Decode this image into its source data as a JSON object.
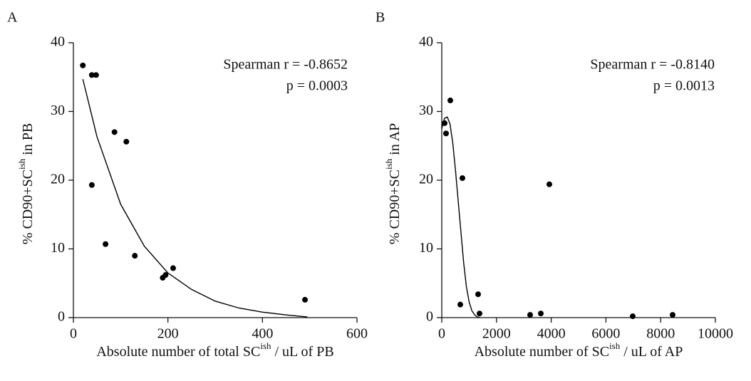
{
  "chart_data": [
    {
      "type": "scatter",
      "panel": "A",
      "annotations": [
        "Spearman r = -0.8652",
        "p = 0.0003"
      ],
      "x_label": [
        "Absolute number of total SC",
        "ish",
        " / uL of PB"
      ],
      "y_label": [
        "% CD90+SC",
        "ish",
        " in PB"
      ],
      "xlim": [
        0,
        600
      ],
      "xticks": [
        0,
        200,
        400,
        600
      ],
      "ylim": [
        0,
        40
      ],
      "yticks": [
        0,
        10,
        20,
        30,
        40
      ],
      "series": [
        {
          "type": "scatter",
          "color": "#000000",
          "x": [
            20,
            39,
            48,
            87,
            112,
            39,
            68,
            130,
            189,
            195,
            211,
            490
          ],
          "values": [
            36.7,
            35.3,
            35.3,
            27.0,
            25.6,
            19.3,
            10.7,
            9.0,
            5.8,
            6.2,
            7.2,
            2.6
          ]
        },
        {
          "type": "line",
          "color": "#000000",
          "x": [
            20,
            50,
            100,
            150,
            200,
            250,
            300,
            350,
            400,
            450,
            495
          ],
          "values": [
            34.7,
            26.3,
            16.5,
            10.4,
            6.5,
            4.1,
            2.4,
            1.4,
            0.8,
            0.4,
            0.1
          ]
        }
      ]
    },
    {
      "type": "scatter",
      "panel": "B",
      "annotations": [
        "Spearman r = -0.8140",
        "p = 0.0013"
      ],
      "x_label": [
        "Absolute number of SC",
        "ish",
        " / uL of AP"
      ],
      "y_label": [
        "% CD90+SC",
        "ish",
        " in AP"
      ],
      "xlim": [
        0,
        10000
      ],
      "xticks": [
        0,
        2000,
        4000,
        6000,
        8000,
        10000
      ],
      "ylim": [
        0,
        40
      ],
      "yticks": [
        0,
        10,
        20,
        30,
        40
      ],
      "series": [
        {
          "type": "scatter",
          "color": "#000000",
          "x": [
            104,
            156,
            312,
            755,
            677,
            1328,
            1380,
            3229,
            3620,
            3932,
            6979,
            8437
          ],
          "values": [
            28.3,
            26.8,
            31.6,
            20.3,
            1.9,
            3.4,
            0.6,
            0.4,
            0.6,
            19.4,
            0.2,
            0.4
          ]
        },
        {
          "type": "line",
          "color": "#000000",
          "x": [
            0,
            100,
            200,
            300,
            400,
            500,
            600,
            700,
            800,
            900,
            1000,
            1100,
            1200,
            1300,
            1400
          ],
          "values": [
            27.5,
            29.0,
            29.2,
            28.2,
            25.5,
            21.5,
            17.0,
            12.5,
            8.0,
            4.5,
            2.3,
            1.0,
            0.4,
            0.1,
            0
          ]
        }
      ]
    }
  ]
}
